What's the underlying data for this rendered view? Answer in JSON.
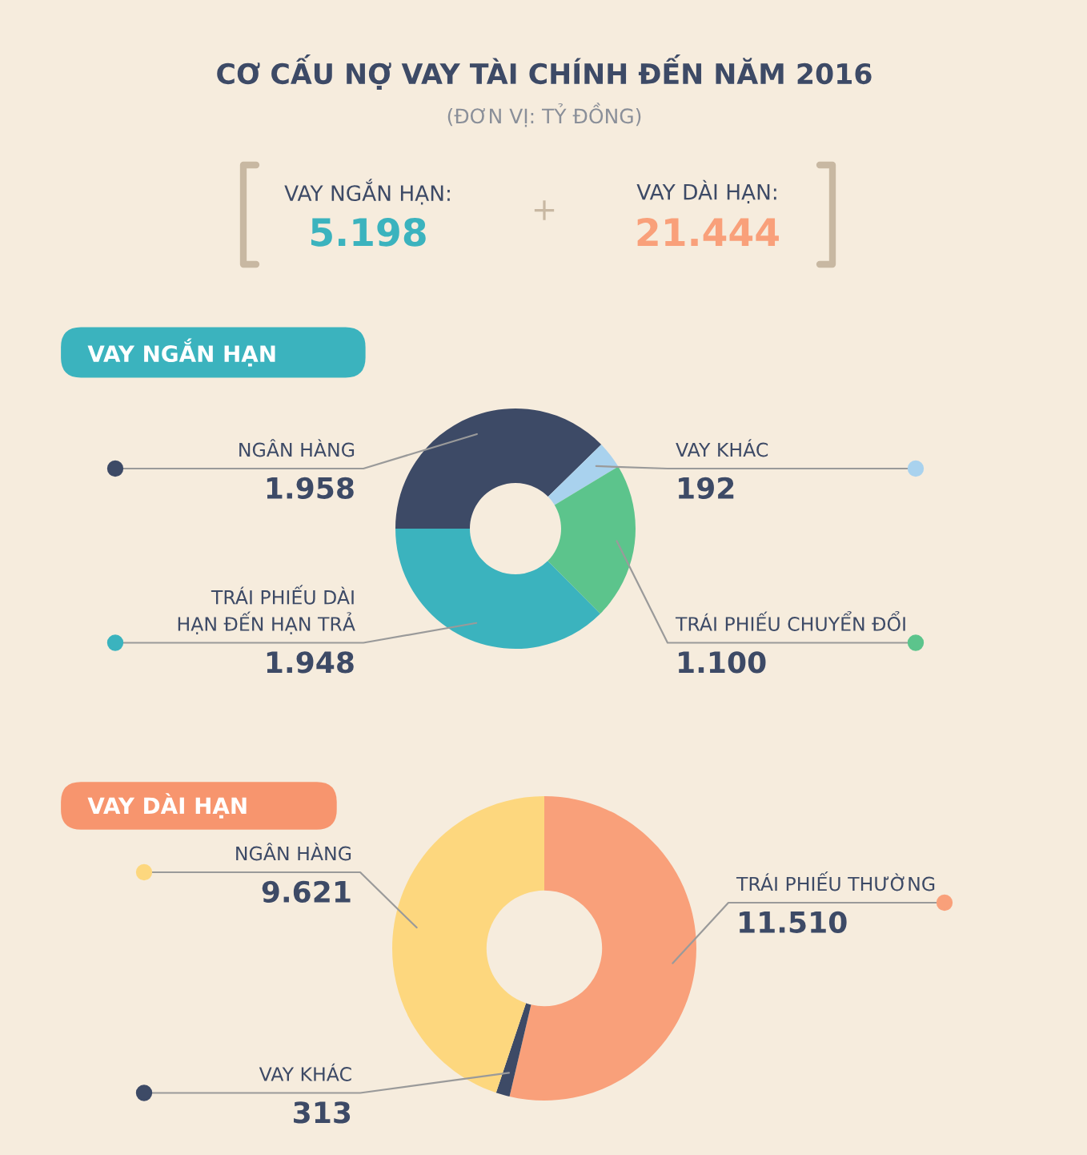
{
  "chart_data": [
    {
      "type": "other",
      "title": "CƠ CẤU NỢ VAY TÀI CHÍNH ĐẾN NĂM 2016",
      "subtitle": "(ĐƠN VỊ: TỶ ĐỒNG)",
      "annotations": [
        "VAY NGẮN HẠN:",
        "5.198",
        "+",
        "VAY DÀI HẠN:",
        "21.444"
      ]
    },
    {
      "type": "donut",
      "title": "VAY NGẮN HẠN",
      "categories": [
        "NGÂN HÀNG",
        "VAY KHÁC",
        "TRÁI PHIẾU CHUYỂN ĐỔI",
        "TRÁI PHIẾU DÀI HẠN ĐẾN HẠN TRẢ"
      ],
      "values": [
        1958,
        192,
        1100,
        1948
      ],
      "value_labels": [
        "1.958",
        "192",
        "1.100",
        "1.948"
      ],
      "colors": [
        "#3d4a66",
        "#a9d2ee",
        "#5cc48c",
        "#3bb3be"
      ]
    },
    {
      "type": "donut",
      "title": "VAY DÀI HẠN",
      "categories": [
        "TRÁI PHIẾU THƯỜNG",
        "VAY KHÁC",
        "NGÂN HÀNG"
      ],
      "values": [
        11510,
        313,
        9621
      ],
      "value_labels": [
        "11.510",
        "313",
        "9.621"
      ],
      "colors": [
        "#f9a07a",
        "#3d4a66",
        "#fdd77e"
      ]
    }
  ]
}
